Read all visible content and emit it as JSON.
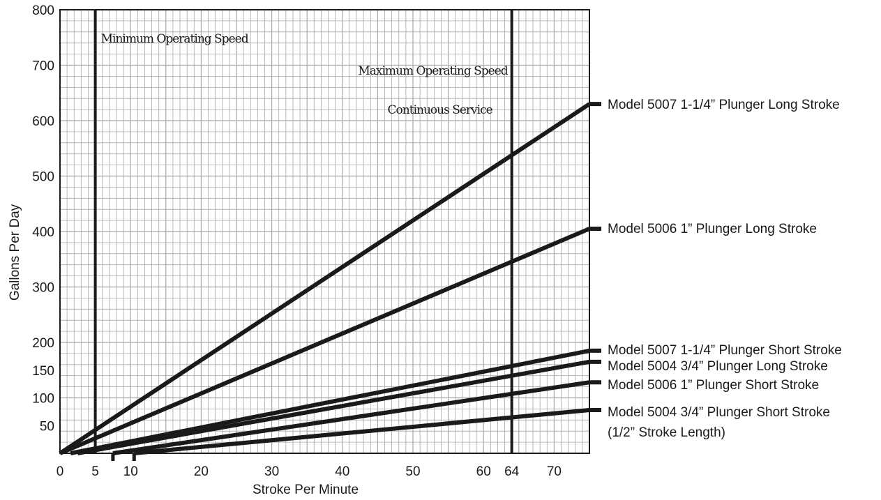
{
  "chart_data": {
    "type": "line",
    "title": "",
    "xlabel": "Stroke Per Minute",
    "ylabel": "Gallons Per Day",
    "xlim": [
      0,
      75
    ],
    "ylim": [
      0,
      800
    ],
    "x_ticks": [
      {
        "value": 0,
        "label": "0"
      },
      {
        "value": 5,
        "label": "5"
      },
      {
        "value": 10,
        "label": "10"
      },
      {
        "value": 20,
        "label": "20"
      },
      {
        "value": 30,
        "label": "30"
      },
      {
        "value": 40,
        "label": "40"
      },
      {
        "value": 50,
        "label": "50"
      },
      {
        "value": 60,
        "label": "60"
      },
      {
        "value": 64,
        "label": "64"
      },
      {
        "value": 70,
        "label": "70"
      }
    ],
    "y_ticks": [
      {
        "value": 50,
        "label": "50"
      },
      {
        "value": 100,
        "label": "100"
      },
      {
        "value": 150,
        "label": "150"
      },
      {
        "value": 200,
        "label": "200"
      },
      {
        "value": 300,
        "label": "300"
      },
      {
        "value": 400,
        "label": "400"
      },
      {
        "value": 500,
        "label": "500"
      },
      {
        "value": 600,
        "label": "600"
      },
      {
        "value": 700,
        "label": "700"
      },
      {
        "value": 800,
        "label": "800"
      }
    ],
    "grid": true,
    "vertical_lines": [
      {
        "x": 5,
        "label": "Minimum Operating Speed"
      },
      {
        "x": 64,
        "label": "Maximum Operating Speed",
        "label2": "Continuous Service"
      }
    ],
    "series": [
      {
        "name": "Model 5007 1-1/4” Plunger Long Stroke",
        "x": [
          0,
          75
        ],
        "y": [
          0,
          630
        ]
      },
      {
        "name": "Model 5006 1” Plunger Long Stroke",
        "x": [
          0,
          75
        ],
        "y": [
          0,
          405
        ]
      },
      {
        "name": "Model 5007 1-1/4” Plunger Short Stroke",
        "x": [
          1.5,
          75
        ],
        "y": [
          0,
          185
        ]
      },
      {
        "name": "Model 5004 3/4” Plunger Long Stroke",
        "x": [
          2.5,
          75
        ],
        "y": [
          0,
          165
        ]
      },
      {
        "name": "Model 5006 1” Plunger Short Stroke",
        "x": [
          7.5,
          75
        ],
        "y": [
          0,
          128
        ]
      },
      {
        "name": "Model 5004 3/4” Plunger Short Stroke",
        "sublabel": "(1/2” Stroke Length)",
        "x": [
          10.5,
          75
        ],
        "y": [
          0,
          78
        ]
      }
    ],
    "axis_markers": [
      7.5,
      10.5
    ],
    "colors": {
      "line": "#1a1a1a",
      "grid": "#a8a8a8",
      "background": "#ffffff"
    }
  }
}
